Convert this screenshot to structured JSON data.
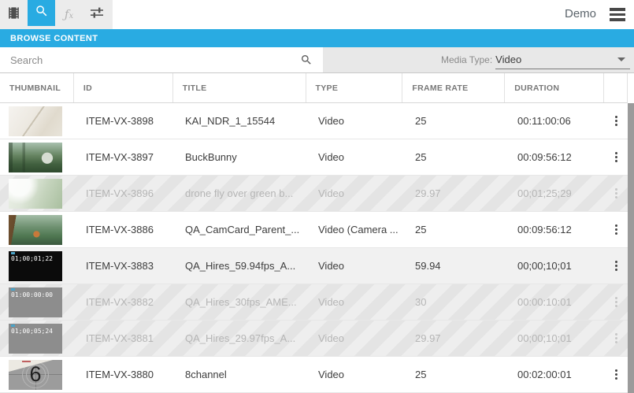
{
  "toolbar": {
    "icons": [
      {
        "name": "filmstrip-icon",
        "active": false
      },
      {
        "name": "search-icon",
        "active": true
      },
      {
        "name": "function-icon",
        "active": false
      },
      {
        "name": "sliders-icon",
        "active": false
      }
    ],
    "user_label": "Demo"
  },
  "browse_bar": {
    "title": "BROWSE CONTENT"
  },
  "filters": {
    "search_placeholder": "Search",
    "media_type_label": "Media Type:",
    "media_type_value": "Video"
  },
  "table": {
    "columns": [
      "THUMBNAIL",
      "ID",
      "TITLE",
      "TYPE",
      "FRAME RATE",
      "DURATION"
    ],
    "rows": [
      {
        "id": "ITEM-VX-3898",
        "title": "KAI_NDR_1_15544",
        "type": "Video",
        "frame_rate": "25",
        "duration": "00:11:00:06",
        "state": "normal",
        "thumb": {
          "kind": "paper"
        }
      },
      {
        "id": "ITEM-VX-3897",
        "title": "BuckBunny",
        "type": "Video",
        "frame_rate": "25",
        "duration": "00:09:56:12",
        "state": "normal",
        "thumb": {
          "kind": "forest"
        }
      },
      {
        "id": "ITEM-VX-3896",
        "title": "drone fly over green b...",
        "type": "Video",
        "frame_rate": "29.97",
        "duration": "00;01;25;29",
        "state": "disabled",
        "thumb": {
          "kind": "aerial"
        }
      },
      {
        "id": "ITEM-VX-3886",
        "title": "QA_CamCard_Parent_...",
        "type": "Video (Camera ...",
        "frame_rate": "25",
        "duration": "00:09:56:12",
        "state": "normal",
        "thumb": {
          "kind": "tree"
        }
      },
      {
        "id": "ITEM-VX-3883",
        "title": "QA_Hires_59.94fps_A...",
        "type": "Video",
        "frame_rate": "59.94",
        "duration": "00;00;10;01",
        "state": "highlighted",
        "thumb": {
          "kind": "timecode-black",
          "timecode": "01;00;01;22"
        }
      },
      {
        "id": "ITEM-VX-3882",
        "title": "QA_Hires_30fps_AME...",
        "type": "Video",
        "frame_rate": "30",
        "duration": "00:00:10:01",
        "state": "disabled",
        "thumb": {
          "kind": "timecode-gray",
          "timecode": "01:00:00:00"
        }
      },
      {
        "id": "ITEM-VX-3881",
        "title": "QA_Hires_29.97fps_A...",
        "type": "Video",
        "frame_rate": "29.97",
        "duration": "00;00;10;01",
        "state": "disabled",
        "thumb": {
          "kind": "timecode-gray",
          "timecode": "01;00;05;24"
        }
      },
      {
        "id": "ITEM-VX-3880",
        "title": "8channel",
        "type": "Video",
        "frame_rate": "25",
        "duration": "00:02:00:01",
        "state": "normal",
        "thumb": {
          "kind": "countdown",
          "number": "6"
        }
      }
    ]
  },
  "colors": {
    "accent": "#29abe2",
    "disabled_text": "#b5b5b5",
    "highlight_row": "#f1f1f1",
    "scrollbar": "#9b9b9b"
  }
}
